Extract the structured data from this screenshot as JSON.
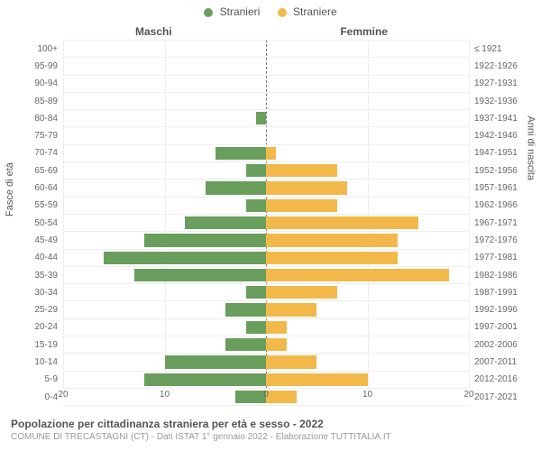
{
  "legend": {
    "male": {
      "label": "Stranieri",
      "color": "#6a9e5d"
    },
    "female": {
      "label": "Straniere",
      "color": "#f2b94a"
    }
  },
  "headers": {
    "left": "Maschi",
    "right": "Femmine"
  },
  "axis_titles": {
    "left": "Fasce di età",
    "right": "Anni di nascita"
  },
  "chart": {
    "type": "population-pyramid",
    "background_color": "#ffffff",
    "grid_color": "#eeeeee",
    "centerline_color": "#777777",
    "xlim": 20,
    "xticks_left": [
      20,
      10,
      0
    ],
    "xticks_right": [
      0,
      10,
      20
    ],
    "bar_colors": {
      "male": "#6a9e5d",
      "female": "#f2b94a"
    },
    "label_fontsize": 10,
    "tick_fontsize": 10,
    "rows": [
      {
        "age": "100+",
        "birth": "≤ 1921",
        "m": 0,
        "f": 0
      },
      {
        "age": "95-99",
        "birth": "1922-1926",
        "m": 0,
        "f": 0
      },
      {
        "age": "90-94",
        "birth": "1927-1931",
        "m": 0,
        "f": 0
      },
      {
        "age": "85-89",
        "birth": "1932-1936",
        "m": 0,
        "f": 0
      },
      {
        "age": "80-84",
        "birth": "1937-1941",
        "m": 1,
        "f": 0
      },
      {
        "age": "75-79",
        "birth": "1942-1946",
        "m": 0,
        "f": 0
      },
      {
        "age": "70-74",
        "birth": "1947-1951",
        "m": 5,
        "f": 1
      },
      {
        "age": "65-69",
        "birth": "1952-1956",
        "m": 2,
        "f": 7
      },
      {
        "age": "60-64",
        "birth": "1957-1961",
        "m": 6,
        "f": 8
      },
      {
        "age": "55-59",
        "birth": "1962-1966",
        "m": 2,
        "f": 7
      },
      {
        "age": "50-54",
        "birth": "1967-1971",
        "m": 8,
        "f": 15
      },
      {
        "age": "45-49",
        "birth": "1972-1976",
        "m": 12,
        "f": 13
      },
      {
        "age": "40-44",
        "birth": "1977-1981",
        "m": 16,
        "f": 13
      },
      {
        "age": "35-39",
        "birth": "1982-1986",
        "m": 13,
        "f": 18
      },
      {
        "age": "30-34",
        "birth": "1987-1991",
        "m": 2,
        "f": 7
      },
      {
        "age": "25-29",
        "birth": "1992-1996",
        "m": 4,
        "f": 5
      },
      {
        "age": "20-24",
        "birth": "1997-2001",
        "m": 2,
        "f": 2
      },
      {
        "age": "15-19",
        "birth": "2002-2006",
        "m": 4,
        "f": 2
      },
      {
        "age": "10-14",
        "birth": "2007-2011",
        "m": 10,
        "f": 5
      },
      {
        "age": "5-9",
        "birth": "2012-2016",
        "m": 12,
        "f": 10
      },
      {
        "age": "0-4",
        "birth": "2017-2021",
        "m": 3,
        "f": 3
      }
    ]
  },
  "caption": {
    "main": "Popolazione per cittadinanza straniera per età e sesso - 2022",
    "sub": "COMUNE DI TRECASTAGNI (CT) - Dati ISTAT 1° gennaio 2022 - Elaborazione TUTTITALIA.IT"
  }
}
